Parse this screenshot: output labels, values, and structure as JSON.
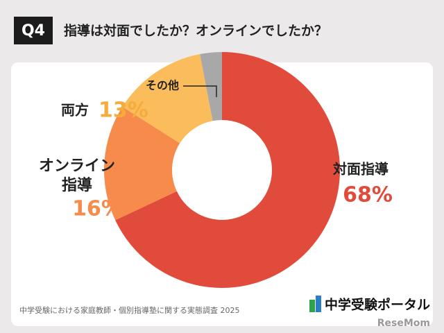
{
  "header": {
    "badge": "Q4",
    "title": "指導は対面でしたか？オンラインでしたか？"
  },
  "chart_data": {
    "type": "donut",
    "categories": [
      "対面指導",
      "オンライン指導",
      "両方",
      "その他"
    ],
    "values": [
      68,
      16,
      13,
      3
    ],
    "value_labels": [
      "68%",
      "16%",
      "13%",
      null
    ],
    "colors": [
      "#e14b3b",
      "#f68b4c",
      "#fbbd5b",
      "#a8a8a8"
    ],
    "label_colors": [
      "#e14b3b",
      "#f68b4c",
      "#f6ac3c",
      null
    ]
  },
  "footer": {
    "source": "中学受験における家庭教師・個別指導塾に関する実態調査 2025",
    "logo": "中学受験ポータル",
    "watermark": "ReseMom"
  }
}
